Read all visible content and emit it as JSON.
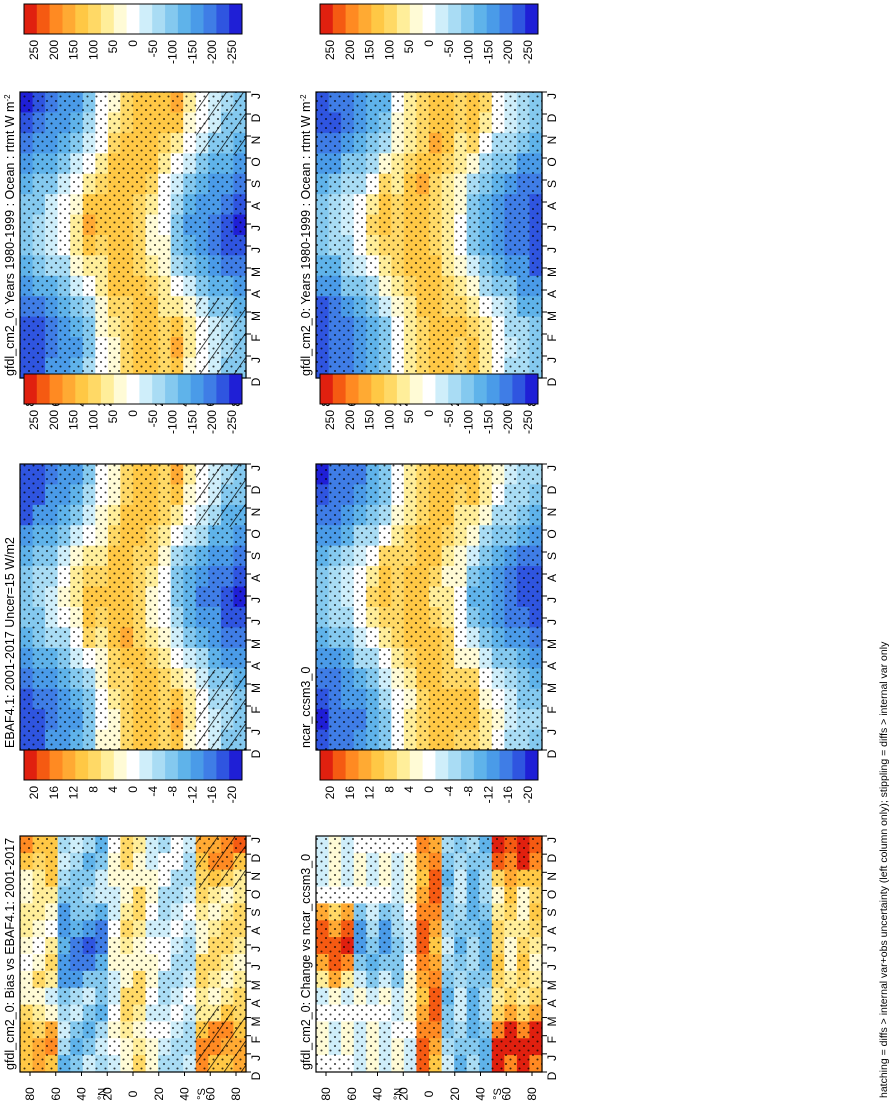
{
  "colors": {
    "scale": [
      "#1f1fd6",
      "#2f55e0",
      "#3f7de6",
      "#4a9be8",
      "#5fb3ea",
      "#84c9ef",
      "#a9dcf4",
      "#cfeefa",
      "#ffffff",
      "#fffbd6",
      "#ffee9a",
      "#ffd966",
      "#ffc845",
      "#ffaa33",
      "#ff8a22",
      "#f55a12",
      "#e0200f"
    ],
    "stipple": "#000000",
    "frame": "#000000"
  },
  "caption": "hatching = diffs > internal var+obs uncertainty (left column only); stippling = diffs > internal var only",
  "chart_data": [
    {
      "type": "heatmap",
      "panel": "left-top",
      "title": "gfdl_cm2_0: Years 1980-1999 : Ocean : rtmt W m",
      "title_sup": "-2",
      "x_ticks": [
        "D",
        "J",
        "F",
        "M",
        "A",
        "M",
        "J",
        "J",
        "A",
        "S",
        "O",
        "N",
        "D",
        "J"
      ],
      "y_ticks": [
        "80",
        "60",
        "40",
        "20",
        "0",
        "20",
        "40",
        "60",
        "80"
      ],
      "y_axis_labels": [
        "°N",
        "°S"
      ],
      "colorbar_ticks": [
        "250",
        "200",
        "150",
        "100",
        "50",
        "0",
        "-50",
        "-100",
        "-150",
        "-200",
        "-250"
      ],
      "colorbar_range": [
        250,
        -250
      ],
      "field": "climatology",
      "hatching": true,
      "stippling": true
    },
    {
      "type": "heatmap",
      "panel": "left-middle",
      "title": "EBAF4.1: 2001-2017 Uncer=15 W/m2",
      "title_sup": "",
      "x_ticks": [
        "D",
        "J",
        "F",
        "M",
        "A",
        "M",
        "J",
        "J",
        "A",
        "S",
        "O",
        "N",
        "D",
        "J"
      ],
      "y_ticks": [
        "80",
        "60",
        "40",
        "20",
        "0",
        "20",
        "40",
        "60",
        "80"
      ],
      "y_axis_labels": [
        "°N",
        "°S"
      ],
      "colorbar_ticks": [
        "250",
        "200",
        "150",
        "100",
        "50",
        "0",
        "-50",
        "-100",
        "-150",
        "-200",
        "-250"
      ],
      "colorbar_range": [
        250,
        -250
      ],
      "field": "climatology",
      "hatching": true,
      "stippling": true
    },
    {
      "type": "heatmap",
      "panel": "left-bottom",
      "title": "gfdl_cm2_0: Bias vs EBAF4.1: 2001-2017",
      "title_sup": "",
      "x_ticks": [
        "D",
        "J",
        "F",
        "M",
        "A",
        "M",
        "J",
        "J",
        "A",
        "S",
        "O",
        "N",
        "D",
        "J"
      ],
      "y_ticks": [
        "80",
        "60",
        "40",
        "20",
        "0",
        "20",
        "40",
        "60",
        "80"
      ],
      "y_axis_labels": [
        "°N",
        "°S"
      ],
      "colorbar_ticks": [
        "20",
        "16",
        "12",
        "8",
        "4",
        "0",
        "-4",
        "-8",
        "-12",
        "-16",
        "-20"
      ],
      "colorbar_range": [
        20,
        -20
      ],
      "field": "bias",
      "hatching": true,
      "stippling": true
    },
    {
      "type": "heatmap",
      "panel": "right-top",
      "title": "gfdl_cm2_0: Years 1980-1999 : Ocean : rtmt W m",
      "title_sup": "-2",
      "x_ticks": [
        "D",
        "J",
        "F",
        "M",
        "A",
        "M",
        "J",
        "J",
        "A",
        "S",
        "O",
        "N",
        "D",
        "J"
      ],
      "y_ticks": [
        "80",
        "60",
        "40",
        "20",
        "0",
        "20",
        "40",
        "60",
        "80"
      ],
      "y_axis_labels": [
        "°N",
        "°S"
      ],
      "colorbar_ticks": [
        "250",
        "200",
        "150",
        "100",
        "50",
        "0",
        "-50",
        "-100",
        "-150",
        "-200",
        "-250"
      ],
      "colorbar_range": [
        250,
        -250
      ],
      "field": "climatology",
      "hatching": false,
      "stippling": true
    },
    {
      "type": "heatmap",
      "panel": "right-middle",
      "title": "ncar_ccsm3_0",
      "title_sup": "",
      "x_ticks": [
        "D",
        "J",
        "F",
        "M",
        "A",
        "M",
        "J",
        "J",
        "A",
        "S",
        "O",
        "N",
        "D",
        "J"
      ],
      "y_ticks": [
        "80",
        "60",
        "40",
        "20",
        "0",
        "20",
        "40",
        "60",
        "80"
      ],
      "y_axis_labels": [
        "°N",
        "°S"
      ],
      "colorbar_ticks": [
        "250",
        "200",
        "150",
        "100",
        "50",
        "0",
        "-50",
        "-100",
        "-150",
        "-200",
        "-250"
      ],
      "colorbar_range": [
        250,
        -250
      ],
      "field": "climatology",
      "hatching": false,
      "stippling": true
    },
    {
      "type": "heatmap",
      "panel": "right-bottom",
      "title": "gfdl_cm2_0: Change vs ncar_ccsm3_0",
      "title_sup": "",
      "x_ticks": [
        "D",
        "J",
        "F",
        "M",
        "A",
        "M",
        "J",
        "J",
        "A",
        "S",
        "O",
        "N",
        "D",
        "J"
      ],
      "y_ticks": [
        "80",
        "60",
        "40",
        "20",
        "0",
        "20",
        "40",
        "60",
        "80"
      ],
      "y_axis_labels": [
        "°N",
        "°S"
      ],
      "colorbar_ticks": [
        "20",
        "16",
        "12",
        "8",
        "4",
        "0",
        "-4",
        "-8",
        "-12",
        "-16",
        "-20"
      ],
      "colorbar_range": [
        20,
        -20
      ],
      "field": "change",
      "hatching": false,
      "stippling": true
    }
  ]
}
